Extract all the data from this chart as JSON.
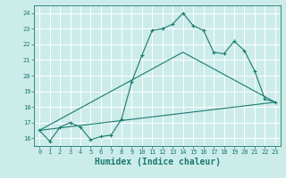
{
  "xlabel": "Humidex (Indice chaleur)",
  "ylabel": "",
  "xlim": [
    -0.5,
    23.5
  ],
  "ylim": [
    15.5,
    24.5
  ],
  "yticks": [
    16,
    17,
    18,
    19,
    20,
    21,
    22,
    23,
    24
  ],
  "xticks": [
    0,
    1,
    2,
    3,
    4,
    5,
    6,
    7,
    8,
    9,
    10,
    11,
    12,
    13,
    14,
    15,
    16,
    17,
    18,
    19,
    20,
    21,
    22,
    23
  ],
  "background_color": "#ccecea",
  "grid_color": "#b8dbd9",
  "line_color": "#1a7a6e",
  "series1": {
    "x": [
      0,
      1,
      2,
      3,
      4,
      5,
      6,
      7,
      8,
      9,
      10,
      11,
      12,
      13,
      14,
      15,
      16,
      17,
      18,
      19,
      20,
      21,
      22,
      23
    ],
    "y": [
      16.5,
      15.8,
      16.7,
      17.0,
      16.7,
      15.9,
      16.1,
      16.2,
      17.2,
      19.6,
      21.3,
      22.9,
      23.0,
      23.3,
      24.0,
      23.2,
      22.9,
      21.5,
      21.4,
      22.2,
      21.6,
      20.3,
      18.5,
      18.3
    ]
  },
  "series2": {
    "x": [
      0,
      23
    ],
    "y": [
      16.5,
      18.3
    ]
  },
  "series3": {
    "x": [
      0,
      14,
      23
    ],
    "y": [
      16.5,
      21.5,
      18.3
    ]
  },
  "font_size_ticks": 5,
  "font_size_xlabel": 7
}
